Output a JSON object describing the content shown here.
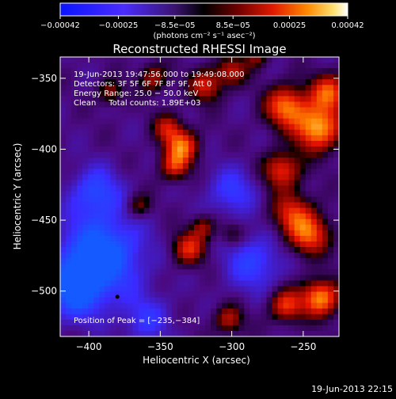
{
  "chart_data": {
    "type": "heatmap",
    "title": "Reconstructed RHESSI Image",
    "xlabel": "Heliocentric X (arcsec)",
    "ylabel": "Heliocentric Y (arcsec)",
    "xlim": [
      -420,
      -225
    ],
    "ylim": [
      -532,
      -335
    ],
    "xticks": [
      -400,
      -350,
      -300,
      -250
    ],
    "xtick_labels": [
      "−400",
      "−350",
      "−300",
      "−250"
    ],
    "yticks": [
      -350,
      -400,
      -450,
      -500
    ],
    "ytick_labels": [
      "−350",
      "−400",
      "−450",
      "−500"
    ],
    "colorbar": {
      "range": [
        -0.00042,
        0.00042
      ],
      "ticks": [
        -0.00042,
        -0.00025,
        -8.5e-05,
        8.5e-05,
        0.00025,
        0.00042
      ],
      "tick_labels": [
        "−0.00042",
        "−0.00025",
        "−8.5e−05",
        "8.5e−05",
        "0.00025",
        "0.00042"
      ],
      "units_label": "(photons cm⁻² s⁻¹ asec⁻²)"
    },
    "info_lines": [
      "19-Jun-2013 19:47:56.000 to 19:49:08.000",
      "Detectors: 3F 5F 6F 7F 8F 9F, Att 0",
      "Energy Range: 25.0 − 50.0 keV",
      "Clean     Total counts: 1.89E+03"
    ],
    "peak_label": "Position of Peak = [−235,−384]",
    "peak_position": [
      -235,
      -384
    ],
    "timestamp": "19-Jun-2013 22:15",
    "colors": {
      "negative": "#1a33ff",
      "zero": "#000000",
      "positive": "#ff3b00",
      "max": "#ffffff"
    }
  }
}
